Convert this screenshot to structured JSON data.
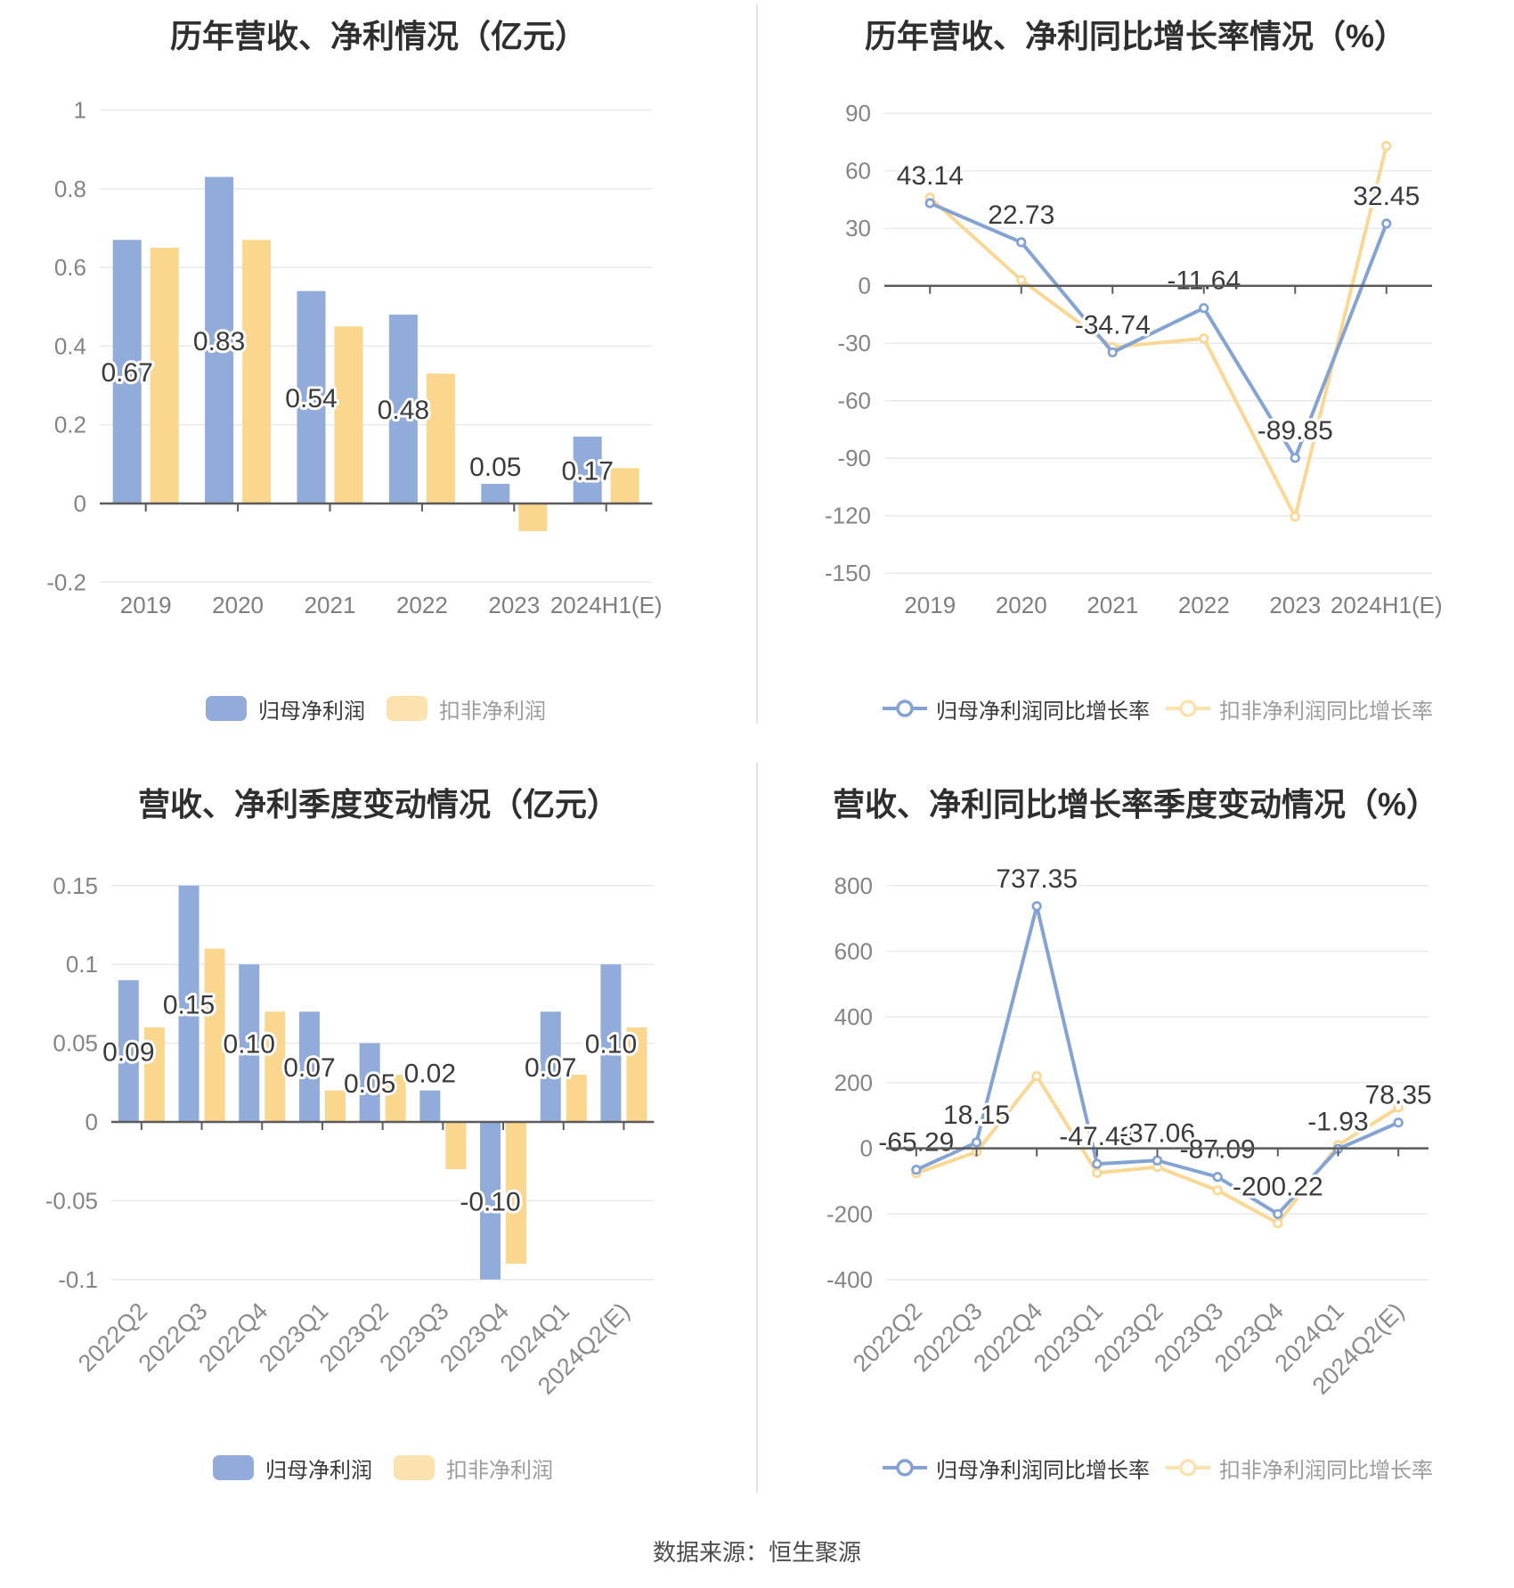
{
  "footer": {
    "source_label": "数据来源：恒生聚源"
  },
  "colors": {
    "bar_blue": "#91ABDA",
    "bar_yellow": "#FBD78D",
    "line_blue": "#84A3D5",
    "line_yellow": "#FAD894",
    "legend_blue": "#92ABDA",
    "legend_yellow": "#FCE2AE",
    "grid": "#E8EAEE",
    "axis": "#5B5B5B",
    "tick_text": "#848484",
    "value_text": "#3B3B3B",
    "title_text": "#2F2F2F"
  },
  "chart_data": [
    {
      "id": "annual-profit",
      "type": "bar",
      "title": "历年营收、净利情况（亿元）",
      "unit": "亿元",
      "categories": [
        "2019",
        "2020",
        "2021",
        "2022",
        "2023",
        "2024H1(E)"
      ],
      "ytick_labels": [
        "1",
        "0.8",
        "0.6",
        "0.4",
        "0.2",
        "0",
        "-0.2"
      ],
      "ylim": [
        -0.2,
        1
      ],
      "grid": true,
      "legend_position": "bottom",
      "series": [
        {
          "name": "归母净利润",
          "values": [
            0.67,
            0.83,
            0.54,
            0.48,
            0.05,
            0.17
          ]
        },
        {
          "name": "扣非净利润",
          "values": [
            0.65,
            0.67,
            0.45,
            0.33,
            -0.07,
            0.09
          ]
        }
      ],
      "data_labels": [
        "0.67",
        "0.83",
        "0.54",
        "0.48",
        "0.05",
        "0.17"
      ]
    },
    {
      "id": "annual-growth",
      "type": "line",
      "title": "历年营收、净利同比增长率情况（%）",
      "unit": "%",
      "categories": [
        "2019",
        "2020",
        "2021",
        "2022",
        "2023",
        "2024H1(E)"
      ],
      "ytick_labels": [
        "90",
        "60",
        "30",
        "0",
        "-30",
        "-60",
        "-90",
        "-120",
        "-150"
      ],
      "ylim": [
        -150,
        90
      ],
      "grid": true,
      "legend_position": "bottom",
      "series": [
        {
          "name": "归母净利润同比增长率",
          "values": [
            43.14,
            22.73,
            -34.74,
            -11.64,
            -89.85,
            32.45
          ]
        },
        {
          "name": "扣非净利润同比增长率",
          "values": [
            46,
            3,
            -32,
            -27.5,
            -120.5,
            73
          ]
        }
      ],
      "data_labels": [
        "43.14",
        "22.73",
        "-34.74",
        "-11.64",
        "-89.85",
        "32.45"
      ]
    },
    {
      "id": "quarterly-profit",
      "type": "bar",
      "title": "营收、净利季度变动情况（亿元）",
      "unit": "亿元",
      "categories": [
        "2022Q2",
        "2022Q3",
        "2022Q4",
        "2023Q1",
        "2023Q2",
        "2023Q3",
        "2023Q4",
        "2024Q1",
        "2024Q2(E)"
      ],
      "ytick_labels": [
        "0.15",
        "0.1",
        "0.05",
        "0",
        "-0.05",
        "-0.1"
      ],
      "ylim": [
        -0.1,
        0.15
      ],
      "grid": true,
      "legend_position": "bottom",
      "rotate_labels": true,
      "series": [
        {
          "name": "归母净利润",
          "values": [
            0.09,
            0.15,
            0.1,
            0.07,
            0.05,
            0.02,
            -0.1,
            0.07,
            0.1
          ]
        },
        {
          "name": "扣非净利润",
          "values": [
            0.06,
            0.11,
            0.07,
            0.02,
            0.03,
            -0.03,
            -0.09,
            0.03,
            0.06
          ]
        }
      ],
      "data_labels": [
        "0.09",
        "0.15",
        "0.10",
        "0.07",
        "0.05",
        "0.02",
        "-0.10",
        "0.07",
        "0.10"
      ]
    },
    {
      "id": "quarterly-growth",
      "type": "line",
      "title": "营收、净利同比增长率季度变动情况（%）",
      "unit": "%",
      "categories": [
        "2022Q2",
        "2022Q3",
        "2022Q4",
        "2023Q1",
        "2023Q2",
        "2023Q3",
        "2023Q4",
        "2024Q1",
        "2024Q2(E)"
      ],
      "ytick_labels": [
        "800",
        "600",
        "400",
        "200",
        "0",
        "-200",
        "-400"
      ],
      "ylim": [
        -400,
        800
      ],
      "grid": true,
      "legend_position": "bottom",
      "rotate_labels": true,
      "series": [
        {
          "name": "归母净利润同比增长率",
          "values": [
            -65.29,
            18.15,
            737.35,
            -47.48,
            -37.06,
            -87.09,
            -200.22,
            -1.93,
            78.35
          ]
        },
        {
          "name": "扣非净利润同比增长率",
          "values": [
            -76,
            -11,
            220,
            -75,
            -57,
            -128,
            -228,
            10,
            124
          ]
        }
      ],
      "data_labels": [
        "-65.29",
        "18.15",
        "737.35",
        "-47.48",
        "-37.06",
        "-87.09",
        "-200.22",
        "-1.93",
        "78.35"
      ]
    }
  ]
}
